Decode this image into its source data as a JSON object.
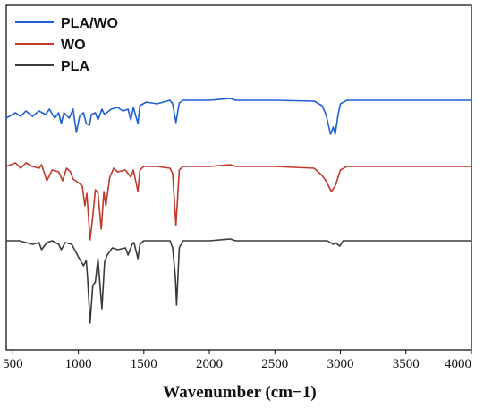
{
  "chart_data": {
    "type": "line",
    "xlabel": "Wavenumber (cm−1)",
    "ylabel": "",
    "xlim": [
      450,
      4000
    ],
    "xticks": [
      500,
      1000,
      1500,
      2000,
      2500,
      3000,
      3500,
      4000
    ],
    "y_axis": "stacked spectra, no values shown",
    "grid": false,
    "legend_position": "top-left",
    "series": [
      {
        "name": "PLA/WO",
        "color": "#1f5fd6",
        "baseline": 0.0,
        "points": [
          [
            450,
            20
          ],
          [
            520,
            14
          ],
          [
            560,
            18
          ],
          [
            600,
            12
          ],
          [
            650,
            18
          ],
          [
            700,
            12
          ],
          [
            750,
            16
          ],
          [
            780,
            10
          ],
          [
            820,
            20
          ],
          [
            850,
            14
          ],
          [
            870,
            26
          ],
          [
            890,
            14
          ],
          [
            930,
            20
          ],
          [
            960,
            10
          ],
          [
            985,
            36
          ],
          [
            1010,
            18
          ],
          [
            1040,
            14
          ],
          [
            1060,
            26
          ],
          [
            1085,
            28
          ],
          [
            1100,
            16
          ],
          [
            1130,
            14
          ],
          [
            1150,
            22
          ],
          [
            1180,
            10
          ],
          [
            1200,
            16
          ],
          [
            1250,
            10
          ],
          [
            1300,
            8
          ],
          [
            1340,
            12
          ],
          [
            1380,
            10
          ],
          [
            1400,
            22
          ],
          [
            1420,
            8
          ],
          [
            1455,
            26
          ],
          [
            1470,
            6
          ],
          [
            1520,
            2
          ],
          [
            1600,
            4
          ],
          [
            1700,
            0
          ],
          [
            1720,
            4
          ],
          [
            1745,
            25
          ],
          [
            1770,
            3
          ],
          [
            1800,
            0
          ],
          [
            2000,
            0
          ],
          [
            2160,
            -2
          ],
          [
            2200,
            0
          ],
          [
            2500,
            0
          ],
          [
            2800,
            1
          ],
          [
            2860,
            6
          ],
          [
            2890,
            16
          ],
          [
            2925,
            38
          ],
          [
            2945,
            30
          ],
          [
            2960,
            38
          ],
          [
            2980,
            18
          ],
          [
            3000,
            4
          ],
          [
            3050,
            0
          ],
          [
            3500,
            0
          ],
          [
            4000,
            0
          ]
        ]
      },
      {
        "name": "WO",
        "color": "#c0392b",
        "baseline": 74.0,
        "points": [
          [
            450,
            0
          ],
          [
            520,
            -4
          ],
          [
            560,
            2
          ],
          [
            600,
            -4
          ],
          [
            650,
            0
          ],
          [
            700,
            2
          ],
          [
            720,
            -2
          ],
          [
            760,
            16
          ],
          [
            800,
            4
          ],
          [
            850,
            6
          ],
          [
            880,
            16
          ],
          [
            910,
            2
          ],
          [
            940,
            6
          ],
          [
            960,
            14
          ],
          [
            1000,
            18
          ],
          [
            1030,
            22
          ],
          [
            1050,
            44
          ],
          [
            1065,
            30
          ],
          [
            1090,
            82
          ],
          [
            1110,
            56
          ],
          [
            1130,
            26
          ],
          [
            1150,
            30
          ],
          [
            1175,
            70
          ],
          [
            1195,
            28
          ],
          [
            1210,
            44
          ],
          [
            1240,
            12
          ],
          [
            1270,
            2
          ],
          [
            1300,
            6
          ],
          [
            1360,
            4
          ],
          [
            1400,
            12
          ],
          [
            1420,
            4
          ],
          [
            1455,
            28
          ],
          [
            1470,
            4
          ],
          [
            1500,
            0
          ],
          [
            1600,
            0
          ],
          [
            1700,
            2
          ],
          [
            1720,
            8
          ],
          [
            1745,
            66
          ],
          [
            1770,
            4
          ],
          [
            1800,
            0
          ],
          [
            2000,
            0
          ],
          [
            2160,
            -2
          ],
          [
            2200,
            0
          ],
          [
            2500,
            0
          ],
          [
            2800,
            2
          ],
          [
            2860,
            10
          ],
          [
            2890,
            16
          ],
          [
            2930,
            28
          ],
          [
            2960,
            22
          ],
          [
            3000,
            4
          ],
          [
            3050,
            0
          ],
          [
            3500,
            0
          ],
          [
            4000,
            0
          ]
        ]
      },
      {
        "name": "PLA",
        "color": "#3a3a3a",
        "baseline": 157.0,
        "points": [
          [
            450,
            0
          ],
          [
            550,
            0
          ],
          [
            650,
            4
          ],
          [
            700,
            2
          ],
          [
            720,
            10
          ],
          [
            760,
            2
          ],
          [
            800,
            0
          ],
          [
            850,
            4
          ],
          [
            870,
            10
          ],
          [
            900,
            2
          ],
          [
            950,
            4
          ],
          [
            1000,
            18
          ],
          [
            1040,
            28
          ],
          [
            1060,
            22
          ],
          [
            1070,
            40
          ],
          [
            1090,
            92
          ],
          [
            1110,
            50
          ],
          [
            1130,
            46
          ],
          [
            1150,
            20
          ],
          [
            1180,
            76
          ],
          [
            1200,
            24
          ],
          [
            1220,
            16
          ],
          [
            1260,
            8
          ],
          [
            1300,
            10
          ],
          [
            1360,
            8
          ],
          [
            1380,
            16
          ],
          [
            1410,
            4
          ],
          [
            1425,
            2
          ],
          [
            1455,
            20
          ],
          [
            1470,
            4
          ],
          [
            1500,
            0
          ],
          [
            1700,
            0
          ],
          [
            1720,
            8
          ],
          [
            1740,
            40
          ],
          [
            1750,
            72
          ],
          [
            1770,
            8
          ],
          [
            1800,
            0
          ],
          [
            2000,
            0
          ],
          [
            2160,
            -2
          ],
          [
            2200,
            0
          ],
          [
            2500,
            0
          ],
          [
            2900,
            0
          ],
          [
            2945,
            4
          ],
          [
            2960,
            2
          ],
          [
            2995,
            6
          ],
          [
            3020,
            0
          ],
          [
            3500,
            0
          ],
          [
            4000,
            0
          ]
        ]
      }
    ]
  }
}
